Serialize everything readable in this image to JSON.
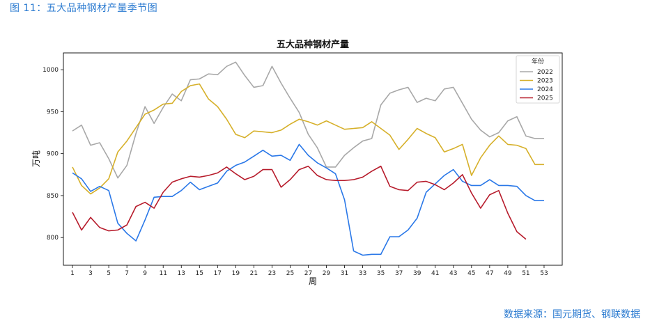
{
  "figure_caption": "图 11：五大品种钢材产量季节图",
  "source_note": "数据来源：国元期货、钢联数据",
  "chart_data": {
    "type": "line",
    "title": "五大品种钢材产量",
    "xlabel": "周",
    "ylabel": "万吨",
    "xlim": [
      0,
      55
    ],
    "ylim": [
      767,
      1020
    ],
    "x_ticks": [
      1,
      3,
      5,
      7,
      9,
      11,
      13,
      15,
      17,
      19,
      21,
      23,
      25,
      27,
      29,
      31,
      33,
      35,
      37,
      39,
      41,
      43,
      45,
      47,
      49,
      51,
      53
    ],
    "y_ticks": [
      800,
      850,
      900,
      950,
      1000
    ],
    "grid": false,
    "legend_title": "年份",
    "legend_position": "top-right",
    "series": [
      {
        "name": "2022",
        "color": "#a8a8a8",
        "x": [
          1,
          2,
          3,
          4,
          5,
          6,
          7,
          8,
          9,
          10,
          11,
          12,
          13,
          14,
          15,
          16,
          17,
          18,
          19,
          20,
          21,
          22,
          23,
          24,
          25,
          26,
          27,
          28,
          29,
          30,
          31,
          32,
          33,
          34,
          35,
          36,
          37,
          38,
          39,
          40,
          41,
          42,
          43,
          44,
          45,
          46,
          47,
          48,
          49,
          50,
          51,
          52,
          53
        ],
        "values": [
          927,
          934,
          910,
          913,
          894,
          871,
          886,
          924,
          956,
          936,
          955,
          971,
          963,
          988,
          989,
          995,
          994,
          1004,
          1009,
          993,
          979,
          981,
          1004,
          984,
          966,
          949,
          923,
          907,
          884,
          884,
          898,
          907,
          915,
          918,
          958,
          972,
          976,
          979,
          961,
          966,
          963,
          977,
          979,
          960,
          941,
          928,
          920,
          925,
          939,
          944,
          921,
          918,
          918
        ]
      },
      {
        "name": "2023",
        "color": "#d6b02a",
        "x": [
          1,
          2,
          3,
          4,
          5,
          6,
          7,
          8,
          9,
          10,
          11,
          12,
          13,
          14,
          15,
          16,
          17,
          18,
          19,
          20,
          21,
          22,
          23,
          24,
          25,
          26,
          27,
          28,
          29,
          30,
          31,
          32,
          33,
          34,
          35,
          36,
          37,
          38,
          39,
          40,
          41,
          42,
          43,
          44,
          45,
          46,
          47,
          48,
          49,
          50,
          51,
          52,
          53
        ],
        "values": [
          884,
          862,
          852,
          859,
          870,
          902,
          915,
          931,
          947,
          952,
          959,
          960,
          974,
          981,
          983,
          965,
          956,
          941,
          923,
          919,
          927,
          926,
          925,
          928,
          935,
          941,
          938,
          934,
          939,
          934,
          929,
          930,
          931,
          938,
          930,
          922,
          905,
          917,
          930,
          924,
          919,
          902,
          906,
          911,
          874,
          895,
          910,
          921,
          911,
          910,
          906,
          887,
          887
        ]
      },
      {
        "name": "2024",
        "color": "#2a78e8",
        "x": [
          1,
          2,
          3,
          4,
          5,
          6,
          7,
          8,
          9,
          10,
          11,
          12,
          13,
          14,
          15,
          16,
          17,
          18,
          19,
          20,
          21,
          22,
          23,
          24,
          25,
          26,
          27,
          28,
          29,
          30,
          31,
          32,
          33,
          34,
          35,
          36,
          37,
          38,
          39,
          40,
          41,
          42,
          43,
          44,
          45,
          46,
          47,
          48,
          49,
          50,
          51,
          52,
          53
        ],
        "values": [
          877,
          870,
          855,
          861,
          856,
          817,
          805,
          796,
          821,
          848,
          849,
          849,
          856,
          866,
          857,
          861,
          865,
          879,
          886,
          890,
          897,
          904,
          897,
          898,
          892,
          911,
          898,
          889,
          883,
          876,
          845,
          784,
          779,
          780,
          780,
          801,
          801,
          809,
          823,
          854,
          864,
          874,
          881,
          867,
          862,
          862,
          869,
          862,
          862,
          861,
          850,
          844,
          844
        ]
      },
      {
        "name": "2025",
        "color": "#b71c2c",
        "x": [
          1,
          2,
          3,
          4,
          5,
          6,
          7,
          8,
          9,
          10,
          11,
          12,
          13,
          14,
          15,
          16,
          17,
          18,
          19,
          20,
          21,
          22,
          23,
          24,
          25,
          26,
          27,
          28,
          29,
          30,
          31,
          32,
          33,
          34,
          35,
          36,
          37,
          38,
          39,
          40,
          41,
          42,
          43,
          44,
          45,
          46,
          47,
          48,
          49,
          50,
          51
        ],
        "values": [
          830,
          809,
          824,
          812,
          808,
          809,
          815,
          837,
          842,
          835,
          854,
          866,
          870,
          873,
          872,
          874,
          877,
          884,
          876,
          869,
          873,
          881,
          881,
          860,
          869,
          881,
          885,
          874,
          869,
          868,
          868,
          869,
          872,
          879,
          885,
          861,
          857,
          856,
          866,
          867,
          863,
          857,
          865,
          875,
          853,
          835,
          851,
          856,
          829,
          807,
          798
        ]
      }
    ]
  }
}
